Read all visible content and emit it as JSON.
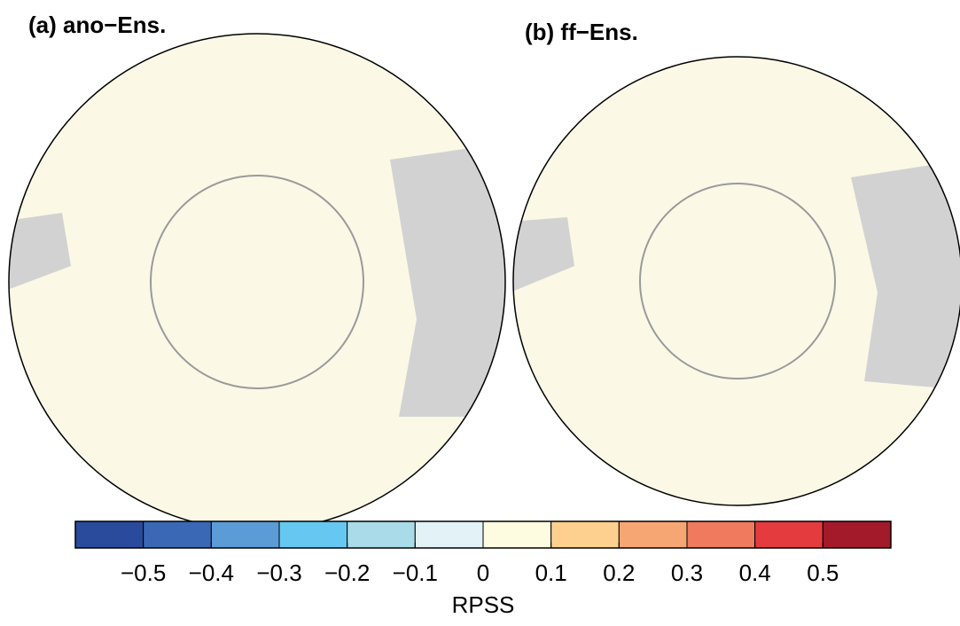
{
  "panels": [
    {
      "title": "(a) ano−Ens."
    },
    {
      "title": "(b) ff−Ens."
    }
  ],
  "colorbar": {
    "colors": [
      "#2a4a9c",
      "#3a68b4",
      "#5b9bd6",
      "#66c8f0",
      "#a9dbe9",
      "#e2f2f7",
      "#fdfbe0",
      "#fdd08f",
      "#f6a673",
      "#ef7a5e",
      "#e43b3f",
      "#a31a2b"
    ],
    "lim": [
      -0.6,
      0.6
    ],
    "ticks": [
      {
        "value": -0.5,
        "label": "−0.5"
      },
      {
        "value": -0.4,
        "label": "−0.4"
      },
      {
        "value": -0.3,
        "label": "−0.3"
      },
      {
        "value": -0.2,
        "label": "−0.2"
      },
      {
        "value": -0.1,
        "label": "−0.1"
      },
      0,
      0.1,
      0.2,
      0.3,
      0.4,
      0.5
    ],
    "label": "RPSS"
  }
}
